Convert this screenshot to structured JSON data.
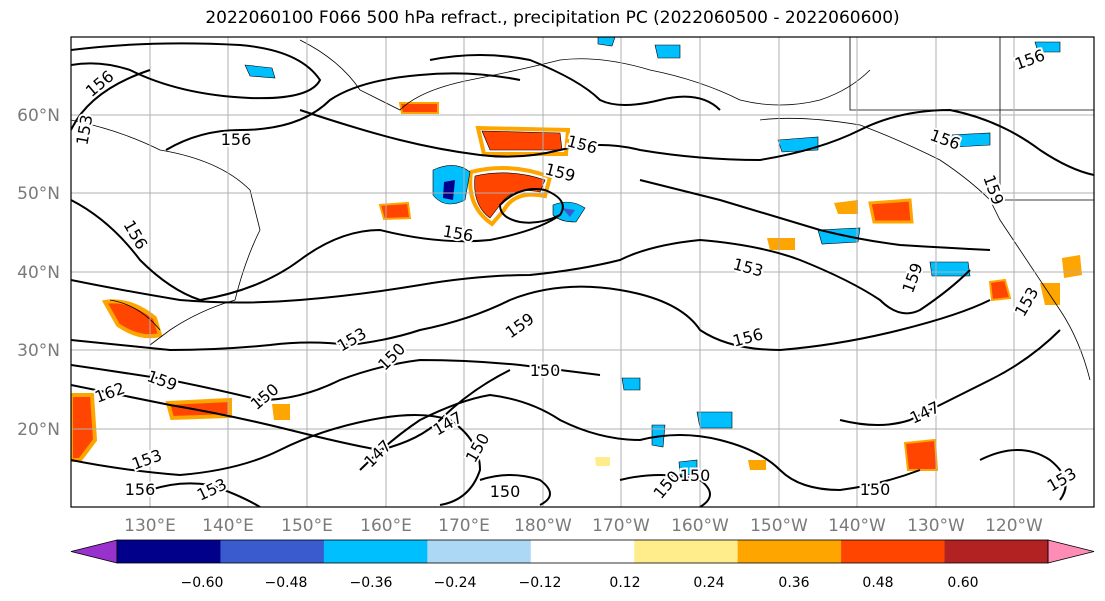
{
  "title": "2022060100 F066 500 hPa refract., precipitation PC (2022060500 - 2022060600)",
  "map": {
    "lat_labels": [
      "60°N",
      "50°N",
      "40°N",
      "30°N",
      "20°N"
    ],
    "lon_labels": [
      "130°E",
      "140°E",
      "150°E",
      "160°E",
      "170°E",
      "180°W",
      "170°W",
      "160°W",
      "150°W",
      "140°W",
      "130°W",
      "120°W"
    ],
    "contour_labels": [
      "156",
      "153",
      "156",
      "156",
      "159",
      "156",
      "159",
      "153",
      "159",
      "156",
      "153",
      "156",
      "150",
      "153",
      "159",
      "150",
      "156",
      "159",
      "162",
      "150",
      "147",
      "147",
      "150",
      "153",
      "153",
      "156",
      "150",
      "150",
      "147",
      "150",
      "150",
      "153",
      "156"
    ]
  },
  "colorbar": {
    "colors": [
      "#9932cc",
      "#00008b",
      "#3a5bcd",
      "#00bfff",
      "#add8f5",
      "#ffffff",
      "#ffec8b",
      "#ffa500",
      "#ff4500",
      "#b22222",
      "#ff8cb4"
    ],
    "tick_labels": [
      "−0.60",
      "−0.48",
      "−0.36",
      "−0.24",
      "−0.12",
      "0.12",
      "0.24",
      "0.36",
      "0.48",
      "0.60"
    ]
  }
}
